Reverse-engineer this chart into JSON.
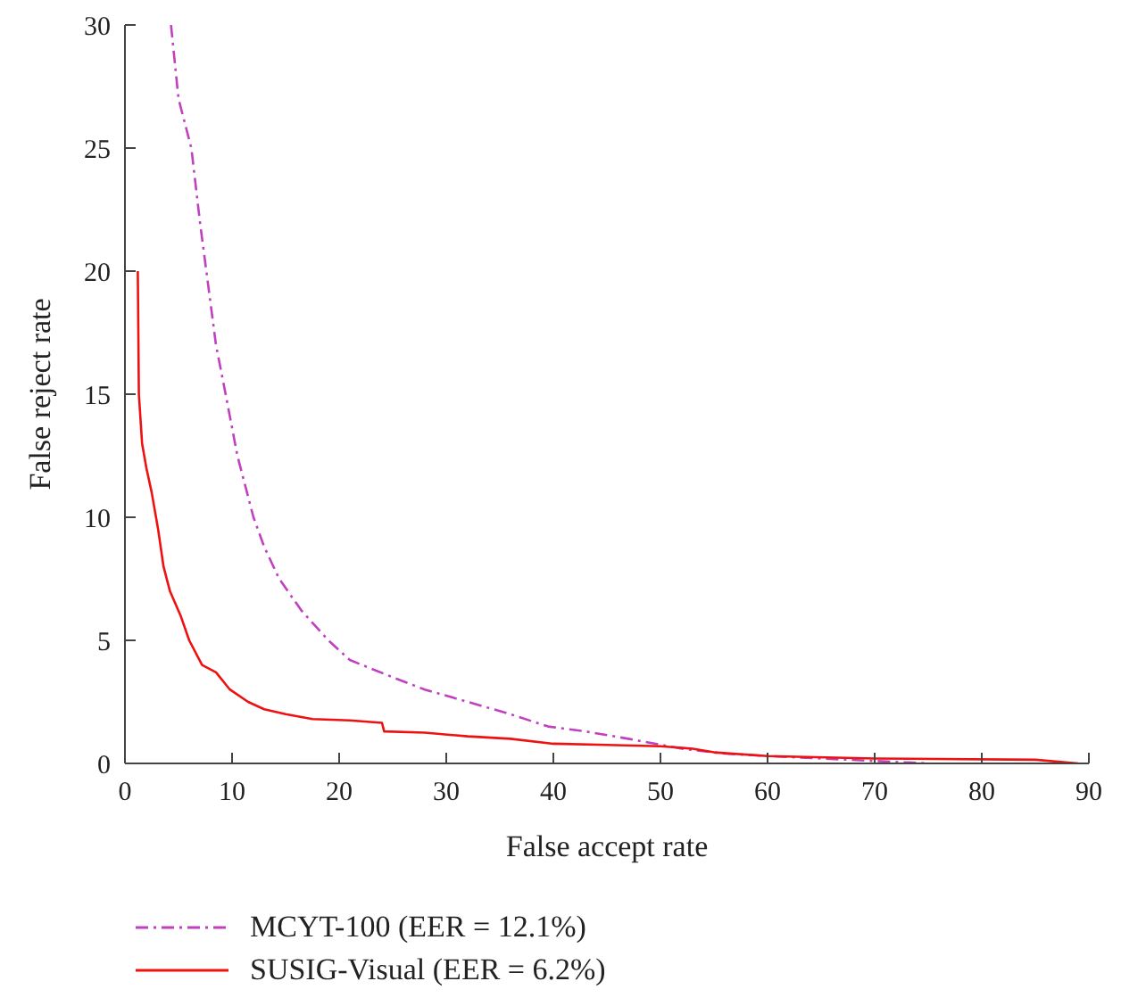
{
  "chart_data": {
    "type": "line",
    "xlabel": "False accept rate",
    "ylabel": "False reject rate",
    "xlim": [
      0,
      90
    ],
    "xticks": [
      0,
      10,
      20,
      30,
      40,
      50,
      60,
      70,
      80,
      90
    ],
    "ylim": [
      0,
      30
    ],
    "yticks": [
      0,
      5,
      10,
      15,
      20,
      25,
      30
    ],
    "grid": false,
    "legend": "bottom",
    "marker": "none",
    "series": [
      {
        "name": "MCYT-100 (EER = 12.1%)",
        "color": "#c040c0",
        "line_style": "dashed",
        "x": [
          4.3,
          5,
          6.2,
          7,
          7.6,
          8.5,
          9.4,
          10.5,
          12,
          13,
          14.4,
          16.5,
          19,
          21,
          25,
          28,
          32,
          36,
          39.5,
          43,
          47,
          52,
          56,
          60,
          65,
          70,
          75
        ],
        "values": [
          30,
          27,
          25,
          22,
          20,
          17,
          15,
          12.5,
          10,
          8.8,
          7.5,
          6.2,
          5,
          4.2,
          3.5,
          3,
          2.5,
          2,
          1.5,
          1.3,
          1,
          0.6,
          0.4,
          0.3,
          0.2,
          0.1,
          0
        ]
      },
      {
        "name": "SUSIG-Visual (EER = 6.2%)",
        "color": "#ee1111",
        "line_style": "solid",
        "x": [
          1.2,
          1.3,
          1.6,
          2,
          2.5,
          3.1,
          3.6,
          4.2,
          5.2,
          6,
          7.2,
          8.5,
          9.8,
          11.5,
          13,
          15,
          17.5,
          21,
          24,
          24.2,
          28,
          32,
          36,
          40,
          45,
          50,
          53,
          55,
          60,
          70,
          85,
          89
        ],
        "values": [
          20,
          15,
          13,
          12,
          11,
          9.5,
          8,
          7,
          6,
          5,
          4,
          3.7,
          3,
          2.5,
          2.2,
          2,
          1.8,
          1.75,
          1.65,
          1.3,
          1.25,
          1.1,
          1,
          0.8,
          0.75,
          0.7,
          0.6,
          0.45,
          0.3,
          0.2,
          0.15,
          0
        ]
      }
    ]
  }
}
